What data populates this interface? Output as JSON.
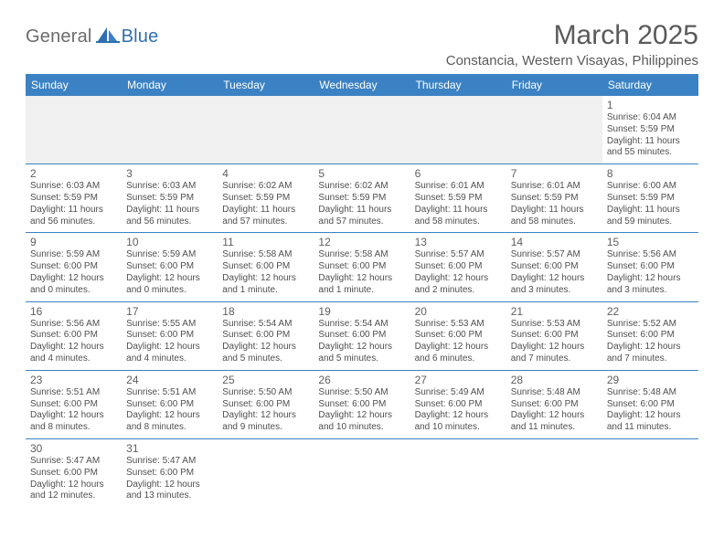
{
  "brand": {
    "part1": "General",
    "part2": "Blue"
  },
  "title": "March 2025",
  "location": "Constancia, Western Visayas, Philippines",
  "header_bg": "#3b82c4",
  "header_text_color": "#ffffff",
  "divider_color": "#3b82c4",
  "empty_week_bg": "#f0f0f0",
  "day_labels": [
    "Sunday",
    "Monday",
    "Tuesday",
    "Wednesday",
    "Thursday",
    "Friday",
    "Saturday"
  ],
  "weeks": [
    [
      null,
      null,
      null,
      null,
      null,
      null,
      {
        "n": "1",
        "sunrise": "6:04 AM",
        "sunset": "5:59 PM",
        "daylight": "11 hours and 55 minutes."
      }
    ],
    [
      {
        "n": "2",
        "sunrise": "6:03 AM",
        "sunset": "5:59 PM",
        "daylight": "11 hours and 56 minutes."
      },
      {
        "n": "3",
        "sunrise": "6:03 AM",
        "sunset": "5:59 PM",
        "daylight": "11 hours and 56 minutes."
      },
      {
        "n": "4",
        "sunrise": "6:02 AM",
        "sunset": "5:59 PM",
        "daylight": "11 hours and 57 minutes."
      },
      {
        "n": "5",
        "sunrise": "6:02 AM",
        "sunset": "5:59 PM",
        "daylight": "11 hours and 57 minutes."
      },
      {
        "n": "6",
        "sunrise": "6:01 AM",
        "sunset": "5:59 PM",
        "daylight": "11 hours and 58 minutes."
      },
      {
        "n": "7",
        "sunrise": "6:01 AM",
        "sunset": "5:59 PM",
        "daylight": "11 hours and 58 minutes."
      },
      {
        "n": "8",
        "sunrise": "6:00 AM",
        "sunset": "5:59 PM",
        "daylight": "11 hours and 59 minutes."
      }
    ],
    [
      {
        "n": "9",
        "sunrise": "5:59 AM",
        "sunset": "6:00 PM",
        "daylight": "12 hours and 0 minutes."
      },
      {
        "n": "10",
        "sunrise": "5:59 AM",
        "sunset": "6:00 PM",
        "daylight": "12 hours and 0 minutes."
      },
      {
        "n": "11",
        "sunrise": "5:58 AM",
        "sunset": "6:00 PM",
        "daylight": "12 hours and 1 minute."
      },
      {
        "n": "12",
        "sunrise": "5:58 AM",
        "sunset": "6:00 PM",
        "daylight": "12 hours and 1 minute."
      },
      {
        "n": "13",
        "sunrise": "5:57 AM",
        "sunset": "6:00 PM",
        "daylight": "12 hours and 2 minutes."
      },
      {
        "n": "14",
        "sunrise": "5:57 AM",
        "sunset": "6:00 PM",
        "daylight": "12 hours and 3 minutes."
      },
      {
        "n": "15",
        "sunrise": "5:56 AM",
        "sunset": "6:00 PM",
        "daylight": "12 hours and 3 minutes."
      }
    ],
    [
      {
        "n": "16",
        "sunrise": "5:56 AM",
        "sunset": "6:00 PM",
        "daylight": "12 hours and 4 minutes."
      },
      {
        "n": "17",
        "sunrise": "5:55 AM",
        "sunset": "6:00 PM",
        "daylight": "12 hours and 4 minutes."
      },
      {
        "n": "18",
        "sunrise": "5:54 AM",
        "sunset": "6:00 PM",
        "daylight": "12 hours and 5 minutes."
      },
      {
        "n": "19",
        "sunrise": "5:54 AM",
        "sunset": "6:00 PM",
        "daylight": "12 hours and 5 minutes."
      },
      {
        "n": "20",
        "sunrise": "5:53 AM",
        "sunset": "6:00 PM",
        "daylight": "12 hours and 6 minutes."
      },
      {
        "n": "21",
        "sunrise": "5:53 AM",
        "sunset": "6:00 PM",
        "daylight": "12 hours and 7 minutes."
      },
      {
        "n": "22",
        "sunrise": "5:52 AM",
        "sunset": "6:00 PM",
        "daylight": "12 hours and 7 minutes."
      }
    ],
    [
      {
        "n": "23",
        "sunrise": "5:51 AM",
        "sunset": "6:00 PM",
        "daylight": "12 hours and 8 minutes."
      },
      {
        "n": "24",
        "sunrise": "5:51 AM",
        "sunset": "6:00 PM",
        "daylight": "12 hours and 8 minutes."
      },
      {
        "n": "25",
        "sunrise": "5:50 AM",
        "sunset": "6:00 PM",
        "daylight": "12 hours and 9 minutes."
      },
      {
        "n": "26",
        "sunrise": "5:50 AM",
        "sunset": "6:00 PM",
        "daylight": "12 hours and 10 minutes."
      },
      {
        "n": "27",
        "sunrise": "5:49 AM",
        "sunset": "6:00 PM",
        "daylight": "12 hours and 10 minutes."
      },
      {
        "n": "28",
        "sunrise": "5:48 AM",
        "sunset": "6:00 PM",
        "daylight": "12 hours and 11 minutes."
      },
      {
        "n": "29",
        "sunrise": "5:48 AM",
        "sunset": "6:00 PM",
        "daylight": "12 hours and 11 minutes."
      }
    ],
    [
      {
        "n": "30",
        "sunrise": "5:47 AM",
        "sunset": "6:00 PM",
        "daylight": "12 hours and 12 minutes."
      },
      {
        "n": "31",
        "sunrise": "5:47 AM",
        "sunset": "6:00 PM",
        "daylight": "12 hours and 13 minutes."
      },
      null,
      null,
      null,
      null,
      null
    ]
  ],
  "labels": {
    "sunrise": "Sunrise:",
    "sunset": "Sunset:",
    "daylight": "Daylight:"
  }
}
